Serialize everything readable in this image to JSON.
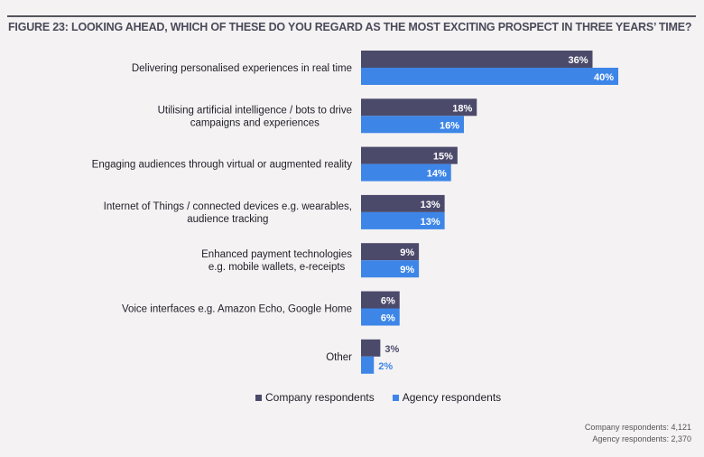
{
  "figure": {
    "title": "FIGURE 23: LOOKING AHEAD, WHICH OF THESE DO YOU REGARD AS THE MOST EXCITING PROSPECT IN THREE YEARS’ TIME?"
  },
  "colors": {
    "company": "#4b4a6b",
    "agency": "#3d86e8"
  },
  "notes": {
    "company": "Company respondents: 4,121",
    "agency": "Agency respondents: 2,370"
  },
  "chart_data": {
    "type": "bar",
    "orientation": "horizontal",
    "title": "FIGURE 23: LOOKING AHEAD, WHICH OF THESE DO YOU REGARD AS THE MOST EXCITING PROSPECT IN THREE YEARS’ TIME?",
    "xlabel": "",
    "ylabel": "",
    "xlim": [
      0,
      40
    ],
    "grid": false,
    "legend_position": "bottom",
    "unit": "%",
    "categories": [
      [
        "Delivering personalised experiences in real time"
      ],
      [
        "Utilising artificial intelligence / bots to drive",
        "campaigns and experiences"
      ],
      [
        "Engaging audiences through virtual or augmented reality"
      ],
      [
        "Internet of Things / connected devices e.g. wearables,",
        "audience tracking"
      ],
      [
        "Enhanced payment technologies",
        "e.g. mobile wallets, e-receipts"
      ],
      [
        "Voice interfaces e.g. Amazon Echo, Google Home"
      ],
      [
        "Other"
      ]
    ],
    "series": [
      {
        "name": "Company respondents",
        "color": "#4b4a6b",
        "values": [
          36,
          18,
          15,
          13,
          9,
          6,
          3
        ]
      },
      {
        "name": "Agency respondents",
        "color": "#3d86e8",
        "values": [
          40,
          16,
          14,
          13,
          9,
          6,
          2
        ]
      }
    ]
  }
}
